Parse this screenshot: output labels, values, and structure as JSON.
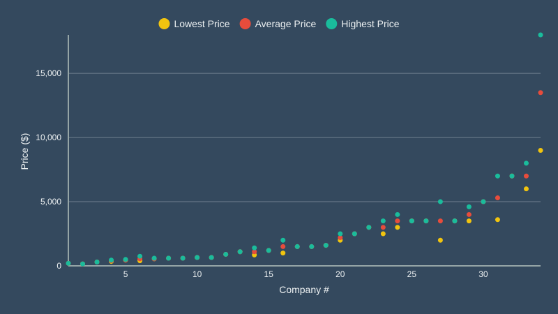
{
  "chart_data": {
    "type": "scatter",
    "title": "",
    "xlabel": "Company #",
    "ylabel": "Price ($)",
    "xlim": [
      1,
      34
    ],
    "ylim": [
      0,
      18000
    ],
    "x_ticks": [
      5,
      10,
      15,
      20,
      25,
      30
    ],
    "x_tick_labels": [
      "5",
      "10",
      "15",
      "20",
      "25",
      "30"
    ],
    "y_ticks": [
      0,
      5000,
      10000,
      15000
    ],
    "y_tick_labels": [
      "0",
      "5,000",
      "10,000",
      "15,000"
    ],
    "grid": true,
    "legend_position": "top-center",
    "x": [
      1,
      2,
      3,
      4,
      5,
      6,
      7,
      8,
      9,
      10,
      11,
      12,
      13,
      14,
      15,
      16,
      17,
      18,
      19,
      20,
      21,
      22,
      23,
      24,
      25,
      26,
      27,
      28,
      29,
      30,
      31,
      32,
      33,
      34
    ],
    "series": [
      {
        "name": "Lowest Price",
        "color": "#f1c40f",
        "values": [
          200,
          150,
          300,
          350,
          450,
          400,
          550,
          600,
          600,
          650,
          650,
          900,
          1100,
          850,
          1200,
          1000,
          1500,
          1500,
          1600,
          2000,
          2500,
          3000,
          2500,
          3000,
          3500,
          3500,
          2000,
          3500,
          3500,
          5000,
          3600,
          7000,
          6000,
          9000
        ]
      },
      {
        "name": "Average Price",
        "color": "#e74c3c",
        "values": [
          200,
          150,
          300,
          400,
          450,
          550,
          550,
          600,
          600,
          650,
          650,
          900,
          1100,
          1100,
          1200,
          1500,
          1500,
          1500,
          1600,
          2200,
          2500,
          3000,
          3000,
          3500,
          3500,
          3500,
          3500,
          3500,
          4000,
          5000,
          5300,
          7000,
          7000,
          13500
        ]
      },
      {
        "name": "Highest Price",
        "color": "#1abc9c",
        "values": [
          200,
          150,
          300,
          450,
          500,
          750,
          600,
          600,
          600,
          650,
          650,
          900,
          1100,
          1400,
          1200,
          2000,
          1500,
          1500,
          1600,
          2500,
          2500,
          3000,
          3500,
          4000,
          3500,
          3500,
          5000,
          3500,
          4600,
          5000,
          7000,
          7000,
          8000,
          18000
        ]
      }
    ]
  }
}
